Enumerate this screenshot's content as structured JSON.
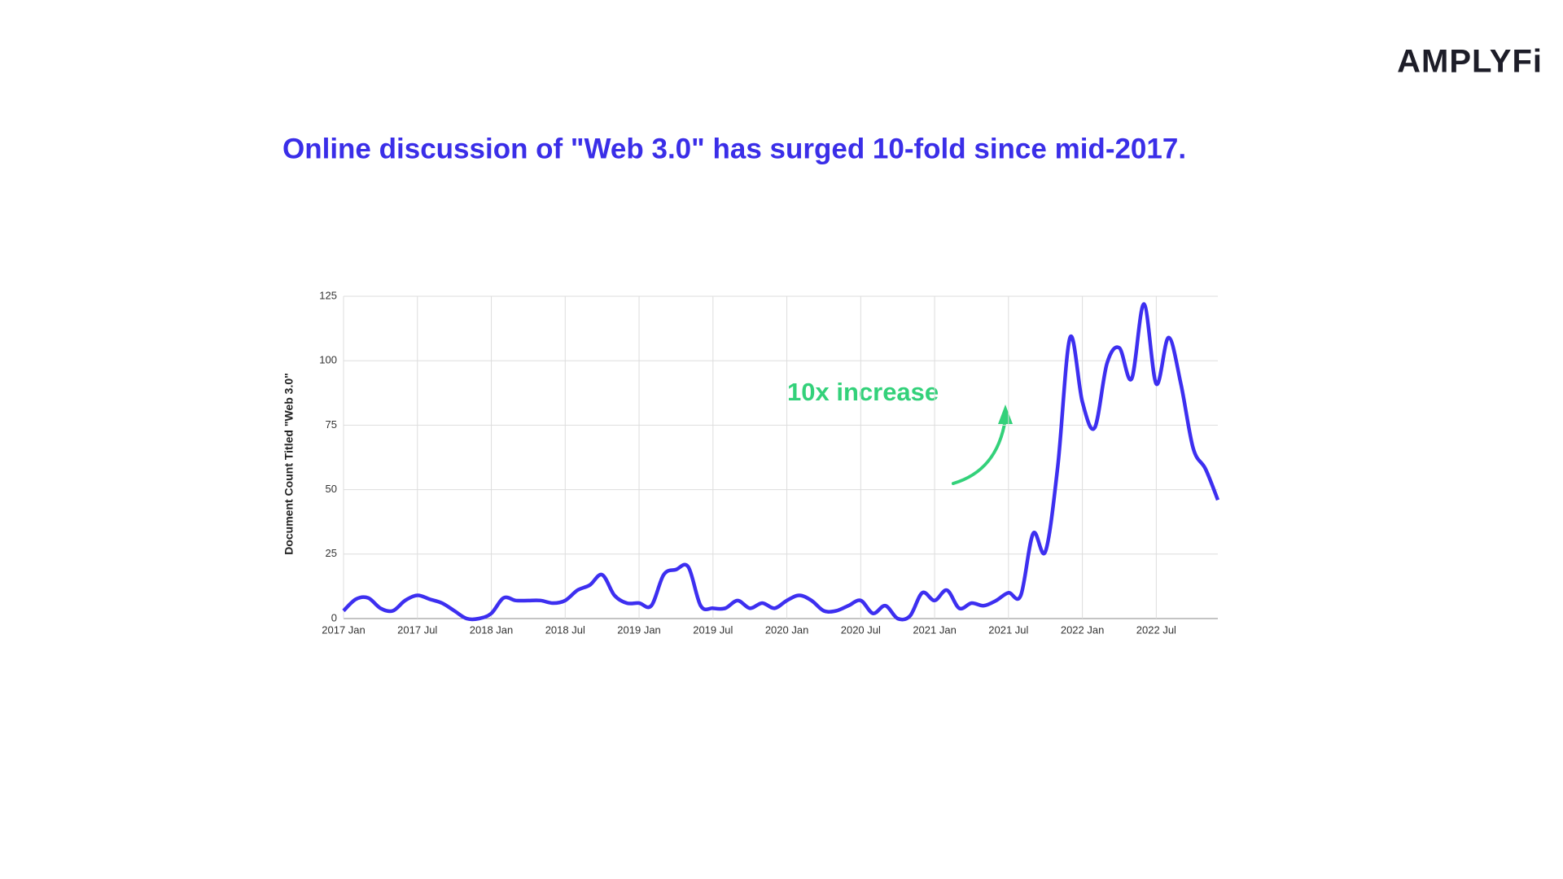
{
  "logo": "AMPLYFi",
  "chart_data": {
    "type": "line",
    "title": "Online discussion of \"Web 3.0\" has surged 10-fold since mid-2017.",
    "ylabel": "Document Count Titled \"Web 3.0\"",
    "annotation": "10x increase",
    "categories": [
      "2017 Jan",
      null,
      null,
      null,
      null,
      null,
      "2017 Jul",
      null,
      null,
      null,
      null,
      null,
      "2018 Jan",
      null,
      null,
      null,
      null,
      null,
      "2018 Jul",
      null,
      null,
      null,
      null,
      null,
      "2019 Jan",
      null,
      null,
      null,
      null,
      null,
      "2019 Jul",
      null,
      null,
      null,
      null,
      null,
      "2020 Jan",
      null,
      null,
      null,
      null,
      null,
      "2020 Jul",
      null,
      null,
      null,
      null,
      null,
      "2021 Jan",
      null,
      null,
      null,
      null,
      null,
      "2021 Jul",
      null,
      null,
      null,
      null,
      null,
      "2022 Jan",
      null,
      null,
      null,
      null,
      null,
      "2022 Jul",
      null,
      null,
      null,
      null,
      null
    ],
    "series": [
      {
        "name": "Web 3.0",
        "color": "#3d2ff0",
        "values": [
          3,
          7.5,
          8,
          4,
          3,
          7,
          9,
          7.5,
          6,
          3,
          0,
          0,
          2,
          8,
          7,
          7,
          7,
          6,
          7,
          11,
          13,
          17,
          9,
          6,
          6,
          5,
          17,
          19,
          20,
          5,
          4,
          4,
          7,
          4,
          6,
          4,
          7,
          9,
          7,
          3,
          3,
          5,
          7,
          2,
          5,
          0,
          1,
          10,
          7,
          11,
          4,
          6,
          5,
          7,
          10,
          9,
          33,
          26,
          59,
          109,
          84,
          74,
          99,
          105,
          93,
          122,
          91,
          109,
          91,
          66,
          58,
          46
        ]
      }
    ],
    "ylim": [
      0,
      125
    ],
    "yticks": [
      0,
      25,
      50,
      75,
      100,
      125
    ],
    "grid": true
  }
}
